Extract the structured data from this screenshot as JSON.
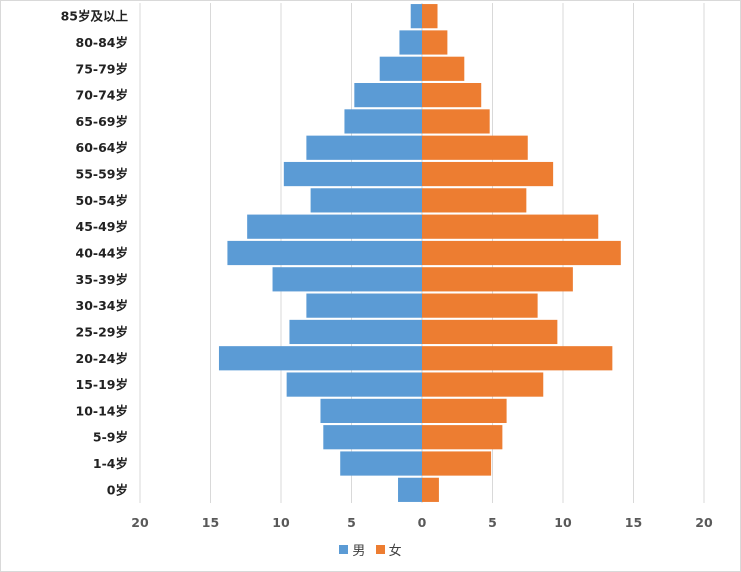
{
  "chart_data": {
    "type": "bar",
    "orientation": "horizontal",
    "layout": "population-pyramid",
    "categories": [
      "0岁",
      "1-4岁",
      "5-9岁",
      "10-14岁",
      "15-19岁",
      "20-24岁",
      "25-29岁",
      "30-34岁",
      "35-39岁",
      "40-44岁",
      "45-49岁",
      "50-54岁",
      "55-59岁",
      "60-64岁",
      "65-69岁",
      "70-74岁",
      "75-79岁",
      "80-84岁",
      "85岁及以上"
    ],
    "series": [
      {
        "name": "男",
        "color": "#5b9bd5",
        "side": "left",
        "values": [
          1.7,
          5.8,
          7.0,
          7.2,
          9.6,
          14.4,
          9.4,
          8.2,
          10.6,
          13.8,
          12.4,
          7.9,
          9.8,
          8.2,
          5.5,
          4.8,
          3.0,
          1.6,
          0.8
        ]
      },
      {
        "name": "女",
        "color": "#ed7d31",
        "side": "right",
        "values": [
          1.2,
          4.9,
          5.7,
          6.0,
          8.6,
          13.5,
          9.6,
          8.2,
          10.7,
          14.1,
          12.5,
          7.4,
          9.3,
          7.5,
          4.8,
          4.2,
          3.0,
          1.8,
          1.1
        ]
      }
    ],
    "x_ticks": [
      "20",
      "15",
      "10",
      "5",
      "0",
      "5",
      "10",
      "15",
      "20"
    ],
    "xlim": [
      -20,
      20
    ],
    "grid": true,
    "legend_position": "bottom",
    "axis_label_color": "#595959",
    "grid_color": "#d9d9d9"
  }
}
